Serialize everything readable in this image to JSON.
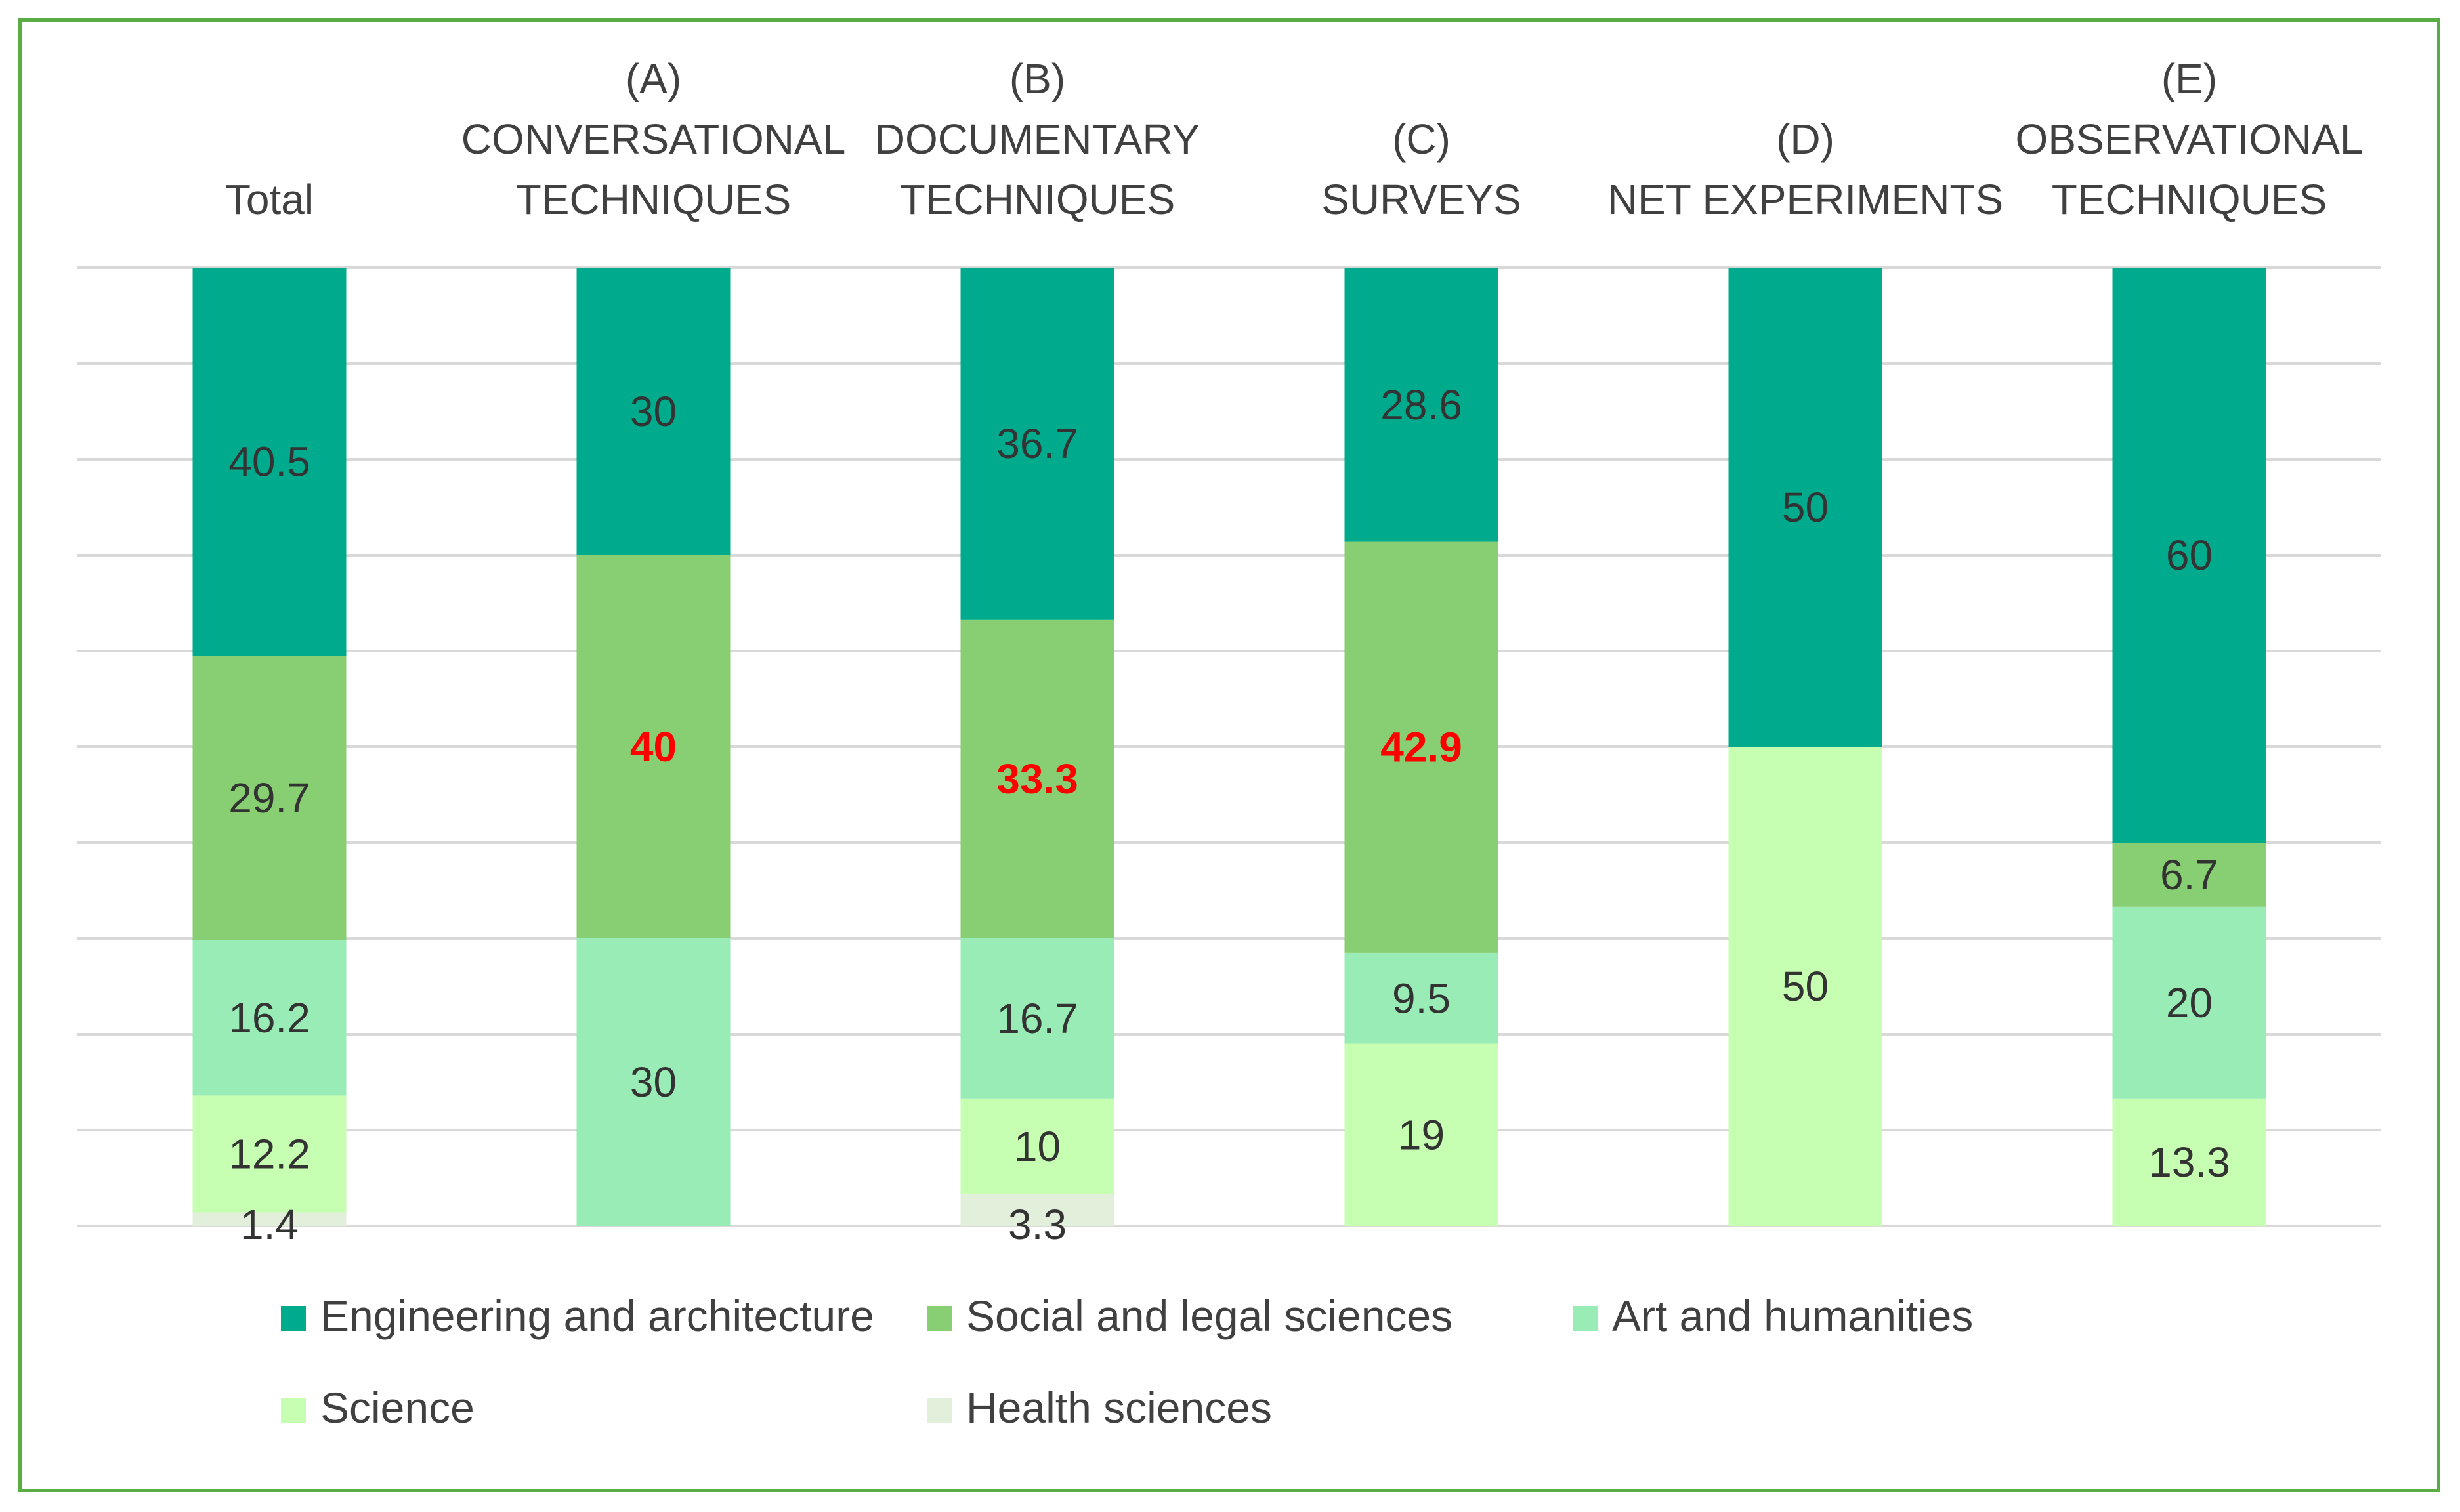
{
  "chart_data": {
    "type": "bar",
    "stacked": true,
    "title": "",
    "xlabel": "",
    "ylabel": "",
    "ylim": [
      0,
      100
    ],
    "grid": true,
    "legend_position": "bottom",
    "categories": [
      [
        "Total"
      ],
      [
        "(A)",
        "CONVERSATIONAL",
        "TECHNIQUES"
      ],
      [
        "(B)",
        "DOCUMENTARY",
        "TECHNIQUES"
      ],
      [
        "(C)",
        "SURVEYS"
      ],
      [
        "(D)",
        "NET EXPERIMENTS"
      ],
      [
        "(E)",
        "OBSERVATIONAL",
        "TECHNIQUES"
      ]
    ],
    "series": [
      {
        "name": "Health sciences",
        "color": "#e2efda",
        "values": [
          1.4,
          0,
          3.3,
          0,
          0,
          0
        ],
        "labels": [
          "1.4",
          "",
          "3.3",
          "",
          "",
          ""
        ]
      },
      {
        "name": "Science",
        "color": "#c6ffb1",
        "values": [
          12.2,
          0,
          10,
          19,
          50,
          13.3
        ],
        "labels": [
          "12.2",
          "",
          "10",
          "19",
          "50",
          "13.3"
        ]
      },
      {
        "name": "Art and humanities",
        "color": "#99ecb5",
        "values": [
          16.2,
          30,
          16.7,
          9.5,
          0,
          20
        ],
        "labels": [
          "16.2",
          "30",
          "16.7",
          "9.5",
          "",
          "20"
        ]
      },
      {
        "name": "Social and legal sciences",
        "color": "#87cf72",
        "values": [
          29.7,
          40,
          33.3,
          42.9,
          0,
          6.7
        ],
        "labels": [
          "29.7",
          "40",
          "33.3",
          "42.9",
          "",
          "6.7"
        ],
        "highlight": [
          false,
          true,
          true,
          true,
          false,
          false
        ]
      },
      {
        "name": "Engineering and architecture",
        "color": "#00aa8c",
        "values": [
          40.5,
          30,
          36.7,
          28.6,
          50,
          60
        ],
        "labels": [
          "40.5",
          "30",
          "36.7",
          "28.6",
          "50",
          "60"
        ]
      }
    ],
    "legend": [
      "Engineering and architecture",
      "Social and legal sciences",
      "Art and humanities",
      "Science",
      "Health sciences"
    ],
    "legend_colors": [
      "#00aa8c",
      "#87cf72",
      "#99ecb5",
      "#c6ffb1",
      "#e2efda"
    ],
    "highlight_color": "#ff0000",
    "grid_color": "#d9d9d9"
  }
}
